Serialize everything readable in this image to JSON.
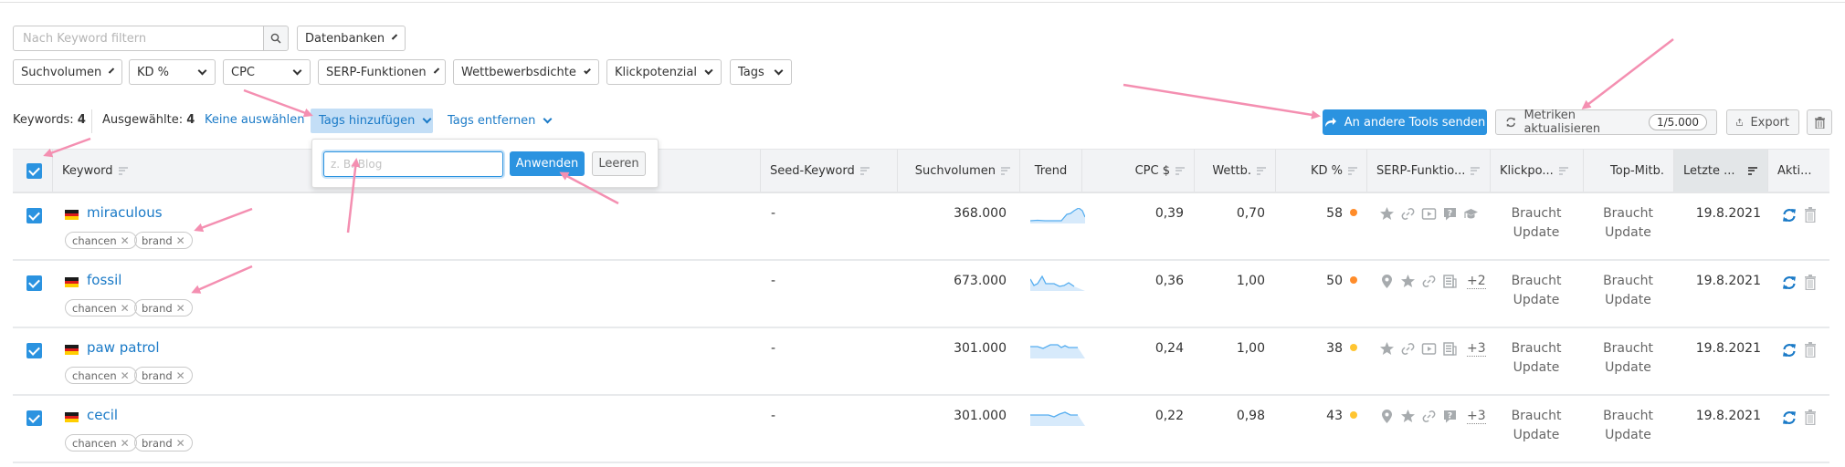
{
  "search": {
    "placeholder": "Nach Keyword filtern",
    "icon": "search-icon"
  },
  "databases": {
    "label": "Datenbanken"
  },
  "filters": [
    {
      "label": "Suchvolumen"
    },
    {
      "label": "KD %"
    },
    {
      "label": "CPC"
    },
    {
      "label": "SERP-Funktionen"
    },
    {
      "label": "Wettbewerbsdichte"
    },
    {
      "label": "Klickpotenzial"
    },
    {
      "label": "Tags"
    }
  ],
  "toolbar": {
    "keywords_label": "Keywords:",
    "keywords_count": "4",
    "selected_label": "Ausgewählte:",
    "selected_count": "4",
    "deselect": "Keine auswählen",
    "add_tags": "Tags hinzufügen",
    "remove_tags": "Tags entfernen",
    "send_tools": "An andere Tools senden",
    "update_metrics": "Metriken aktualisieren",
    "update_quota": "1/5.000",
    "export": "Export"
  },
  "tag_popover": {
    "placeholder": "z. B. Blog",
    "apply": "Anwenden",
    "clear": "Leeren"
  },
  "table": {
    "columns": {
      "keyword": "Keyword",
      "seed": "Seed-Keyword",
      "volume": "Suchvolumen",
      "trend": "Trend",
      "cpc": "CPC $",
      "comp": "Wettb.",
      "kd": "KD %",
      "serp": "SERP-Funktio...",
      "click": "Klickpo...",
      "top": "Top-Mitb.",
      "updated": "Letzte ...",
      "actions": "Akti..."
    },
    "rows": [
      {
        "keyword": "miraculous",
        "tags": [
          "chancen",
          "brand"
        ],
        "seed": "-",
        "volume": "368.000",
        "cpc": "0,39",
        "comp": "0,70",
        "kd": "58",
        "kd_color": "#ff8c2a",
        "serp_icons": [
          "star",
          "link",
          "video",
          "faq",
          "academic"
        ],
        "serp_more": "",
        "click": "Braucht Update",
        "top": "Braucht Update",
        "updated": "19.8.2021"
      },
      {
        "keyword": "fossil",
        "tags": [
          "chancen",
          "brand"
        ],
        "seed": "-",
        "volume": "673.000",
        "cpc": "0,36",
        "comp": "1,00",
        "kd": "50",
        "kd_color": "#ff8c2a",
        "serp_icons": [
          "pin",
          "star",
          "link",
          "news"
        ],
        "serp_more": "+2",
        "click": "Braucht Update",
        "top": "Braucht Update",
        "updated": "19.8.2021"
      },
      {
        "keyword": "paw patrol",
        "tags": [
          "chancen",
          "brand"
        ],
        "seed": "-",
        "volume": "301.000",
        "cpc": "0,24",
        "comp": "1,00",
        "kd": "38",
        "kd_color": "#ffc531",
        "serp_icons": [
          "star",
          "link",
          "video",
          "news"
        ],
        "serp_more": "+3",
        "click": "Braucht Update",
        "top": "Braucht Update",
        "updated": "19.8.2021"
      },
      {
        "keyword": "cecil",
        "tags": [
          "chancen",
          "brand"
        ],
        "seed": "-",
        "volume": "301.000",
        "cpc": "0,22",
        "comp": "0,98",
        "kd": "43",
        "kd_color": "#ffc531",
        "serp_icons": [
          "pin",
          "star",
          "link",
          "faq"
        ],
        "serp_more": "+3",
        "click": "Braucht Update",
        "top": "Braucht Update",
        "updated": "19.8.2021"
      }
    ]
  },
  "colors": {
    "accent": "#2b93e0",
    "link": "#1a7ac7",
    "annotation": "#f48fb1"
  }
}
